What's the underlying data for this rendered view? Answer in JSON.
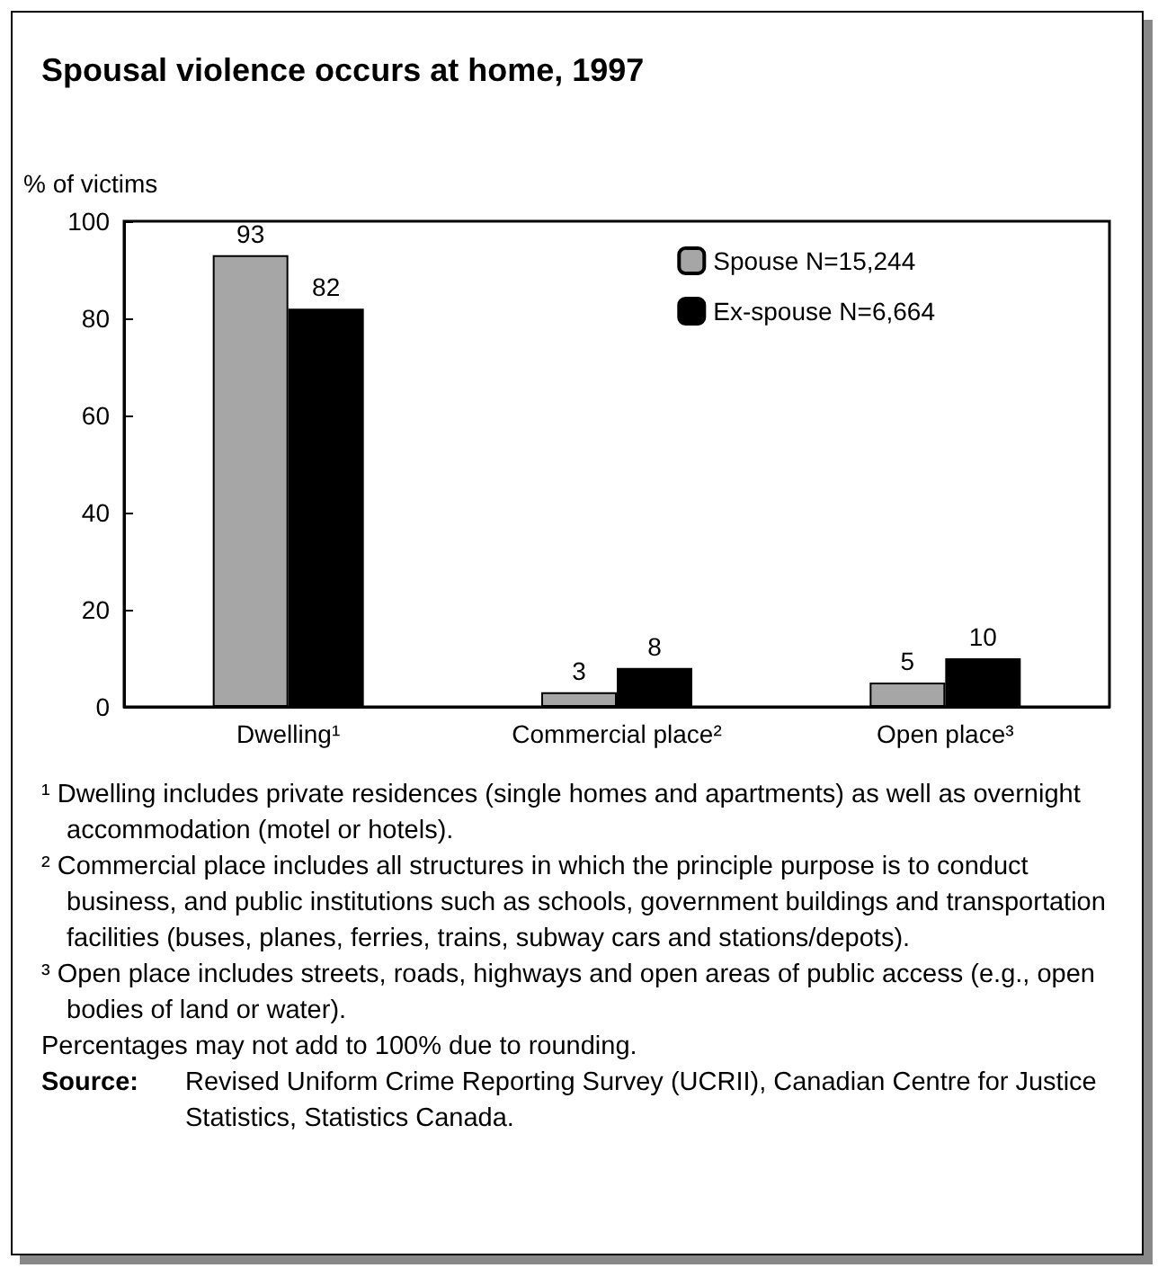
{
  "chart_data": {
    "type": "bar",
    "title": "Spousal violence occurs at home, 1997",
    "ylabel": "% of victims",
    "categories": [
      "Dwelling¹",
      "Commercial place²",
      "Open place³"
    ],
    "series": [
      {
        "name": "Spouse N=15,244",
        "color": "#a6a6a6",
        "values": [
          93,
          3,
          5
        ]
      },
      {
        "name": "Ex-spouse N=6,664",
        "color": "#000000",
        "values": [
          82,
          8,
          10
        ]
      }
    ],
    "ylim": [
      0,
      100
    ],
    "yticks": [
      0,
      20,
      40,
      60,
      80,
      100
    ],
    "grid": false,
    "legend": "top right",
    "data_labels": true,
    "annotations": [
      "¹ Dwelling includes private residences (single homes and apartments) as well as overnight accommodation (motel or hotels).",
      "² Commercial place includes all structures in which the principle purpose is to conduct business, and public institutions such as schools, government buildings and transportation facilities (buses, planes, ferries, trains, subway cars and stations/depots).",
      "³ Open place includes streets, roads, highways and open areas of public access (e.g., open bodies of land or water).",
      "Percentages may not add to 100% due to rounding.",
      "Source: Revised Uniform Crime Reporting Survey (UCRII), Canadian Centre for Justice Statistics, Statistics Canada."
    ]
  }
}
